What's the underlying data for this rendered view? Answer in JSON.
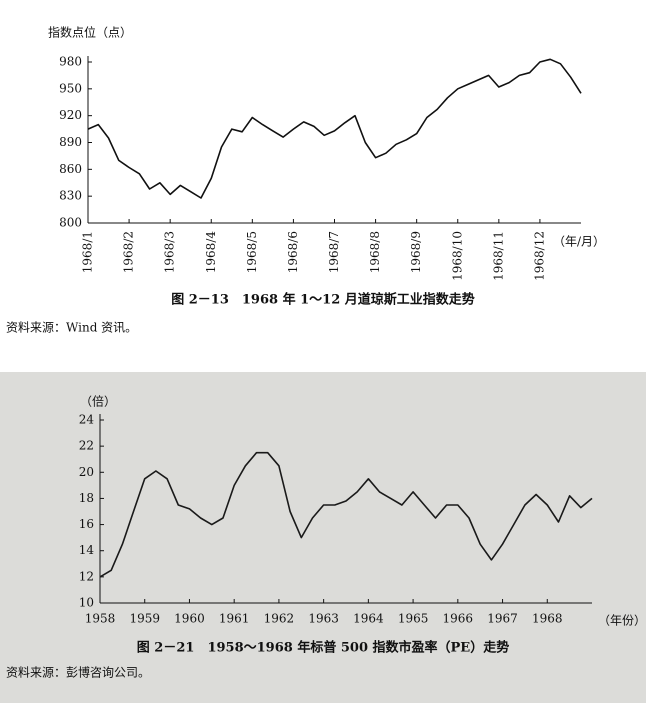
{
  "chart_data": [
    {
      "type": "line",
      "y_label": "指数点位（点）",
      "x_unit_label": "（年/月）",
      "caption": "图 2－13　1968 年 1～12 月道琼斯工业指数走势",
      "source": "资料来源：Wind 资讯。",
      "color": "#111111",
      "xlim": [
        1,
        13
      ],
      "xticks": [
        {
          "value": 1,
          "label": "1968/1"
        },
        {
          "value": 2,
          "label": "1968/2"
        },
        {
          "value": 3,
          "label": "1968/3"
        },
        {
          "value": 4,
          "label": "1968/4"
        },
        {
          "value": 5,
          "label": "1968/5"
        },
        {
          "value": 6,
          "label": "1968/6"
        },
        {
          "value": 7,
          "label": "1968/7"
        },
        {
          "value": 8,
          "label": "1968/8"
        },
        {
          "value": 9,
          "label": "1968/9"
        },
        {
          "value": 10,
          "label": "1968/10"
        },
        {
          "value": 11,
          "label": "1968/11"
        },
        {
          "value": 12,
          "label": "1968/12"
        }
      ],
      "ylim": [
        800,
        980
      ],
      "yticks": [
        800,
        830,
        860,
        890,
        920,
        950,
        980
      ],
      "x": [
        1,
        1.25,
        1.5,
        1.75,
        2,
        2.25,
        2.5,
        2.75,
        3,
        3.25,
        3.5,
        3.75,
        4,
        4.25,
        4.5,
        4.75,
        5,
        5.25,
        5.5,
        5.75,
        6,
        6.25,
        6.5,
        6.75,
        7,
        7.25,
        7.5,
        7.75,
        8,
        8.25,
        8.5,
        8.75,
        9,
        9.25,
        9.5,
        9.75,
        10,
        10.25,
        10.5,
        10.75,
        11,
        11.25,
        11.5,
        11.75,
        12,
        12.25,
        12.5,
        12.75,
        13
      ],
      "values": [
        905,
        910,
        895,
        870,
        862,
        855,
        838,
        845,
        832,
        842,
        835,
        828,
        850,
        885,
        905,
        902,
        918,
        910,
        903,
        896,
        905,
        913,
        908,
        898,
        903,
        912,
        920,
        890,
        873,
        878,
        888,
        893,
        900,
        918,
        927,
        940,
        950,
        955,
        960,
        965,
        952,
        957,
        965,
        968,
        980,
        983,
        978,
        963,
        945
      ]
    },
    {
      "type": "line",
      "y_label": "（倍）",
      "x_unit_label": "（年份）",
      "caption": "图 2－21　1958～1968 年标普 500 指数市盈率（PE）走势",
      "source": "资料来源：彭博咨询公司。",
      "color": "#1a1a1a",
      "xlim": [
        1958,
        1969
      ],
      "xticks": [
        1958,
        1959,
        1960,
        1961,
        1962,
        1963,
        1964,
        1965,
        1966,
        1967,
        1968
      ],
      "ylim": [
        10,
        24
      ],
      "yticks": [
        10,
        12,
        14,
        16,
        18,
        20,
        22,
        24
      ],
      "x": [
        1958,
        1958.25,
        1958.5,
        1958.75,
        1959,
        1959.25,
        1959.5,
        1959.75,
        1960,
        1960.25,
        1960.5,
        1960.75,
        1961,
        1961.25,
        1961.5,
        1961.75,
        1962,
        1962.25,
        1962.5,
        1962.75,
        1963,
        1963.25,
        1963.5,
        1963.75,
        1964,
        1964.25,
        1964.5,
        1964.75,
        1965,
        1965.25,
        1965.5,
        1965.75,
        1966,
        1966.25,
        1966.5,
        1966.75,
        1967,
        1967.25,
        1967.5,
        1967.75,
        1968,
        1968.25,
        1968.5,
        1968.75,
        1969
      ],
      "values": [
        12.0,
        12.5,
        14.5,
        17.0,
        19.5,
        20.1,
        19.5,
        17.5,
        17.2,
        16.5,
        16.0,
        16.5,
        19.0,
        20.5,
        21.5,
        21.5,
        20.5,
        17.0,
        15.0,
        16.5,
        17.5,
        17.5,
        17.8,
        18.5,
        19.5,
        18.5,
        18.0,
        17.5,
        18.5,
        17.5,
        16.5,
        17.5,
        17.5,
        16.5,
        14.5,
        13.3,
        14.5,
        16.0,
        17.5,
        18.3,
        17.5,
        16.2,
        18.2,
        17.3,
        18.0
      ]
    }
  ]
}
